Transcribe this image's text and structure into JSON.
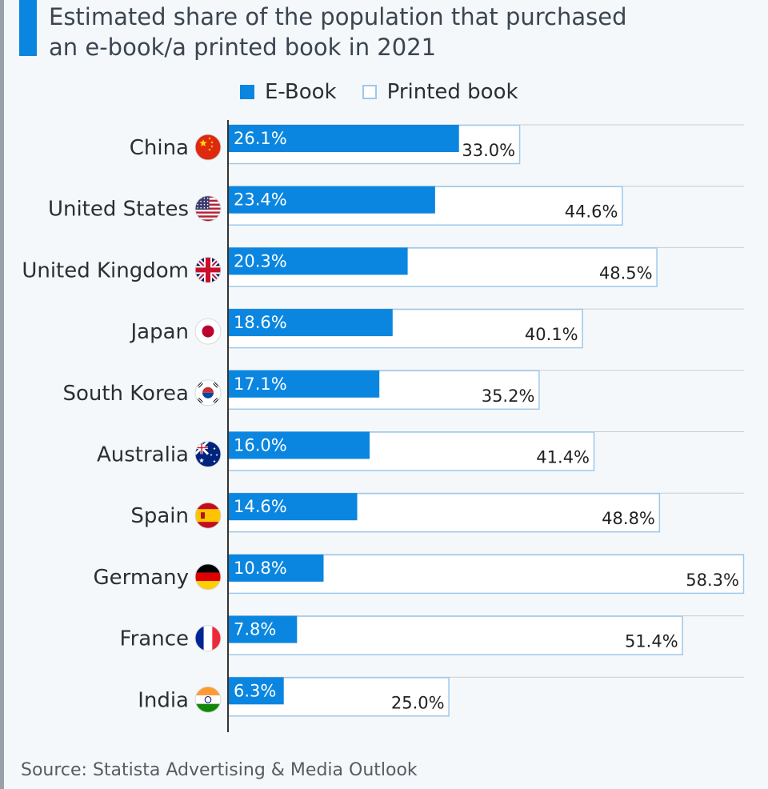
{
  "title": {
    "line1": "Estimated share of the population that purchased",
    "line2": "an e-book/a printed book in 2021"
  },
  "legend": {
    "ebook": "E-Book",
    "printed": "Printed book"
  },
  "source": "Source: Statista Advertising & Media Outlook",
  "colors": {
    "accent": "#0a86e0",
    "printed_fill": "#ffffff",
    "printed_border": "#9ec8ea",
    "axis": "#333333",
    "grid": "#c8ced4"
  },
  "chart_data": {
    "type": "bar",
    "orientation": "horizontal",
    "title": "Estimated share of the population that purchased an e-book/a printed book in 2021",
    "xlabel": "",
    "ylabel": "",
    "xlim": [
      0,
      58.3
    ],
    "grid": true,
    "legend_position": "top",
    "categories": [
      "China",
      "United States",
      "United Kingdom",
      "Japan",
      "South Korea",
      "Australia",
      "Spain",
      "Germany",
      "France",
      "India"
    ],
    "flag_icons": [
      "china-flag-icon",
      "united-states-flag-icon",
      "united-kingdom-flag-icon",
      "japan-flag-icon",
      "south-korea-flag-icon",
      "australia-flag-icon",
      "spain-flag-icon",
      "germany-flag-icon",
      "france-flag-icon",
      "india-flag-icon"
    ],
    "series": [
      {
        "name": "E-Book",
        "values": [
          26.1,
          23.4,
          20.3,
          18.6,
          17.1,
          16.0,
          14.6,
          10.8,
          7.8,
          6.3
        ],
        "labels": [
          "26.1%",
          "23.4%",
          "20.3%",
          "18.6%",
          "17.1%",
          "16.0%",
          "14.6%",
          "10.8%",
          "7.8%",
          "6.3%"
        ]
      },
      {
        "name": "Printed book",
        "values": [
          33.0,
          44.6,
          48.5,
          40.1,
          35.2,
          41.4,
          48.8,
          58.3,
          51.4,
          25.0
        ],
        "labels": [
          "33.0%",
          "44.6%",
          "48.5%",
          "40.1%",
          "35.2%",
          "41.4%",
          "48.8%",
          "58.3%",
          "51.4%",
          "25.0%"
        ]
      }
    ]
  }
}
